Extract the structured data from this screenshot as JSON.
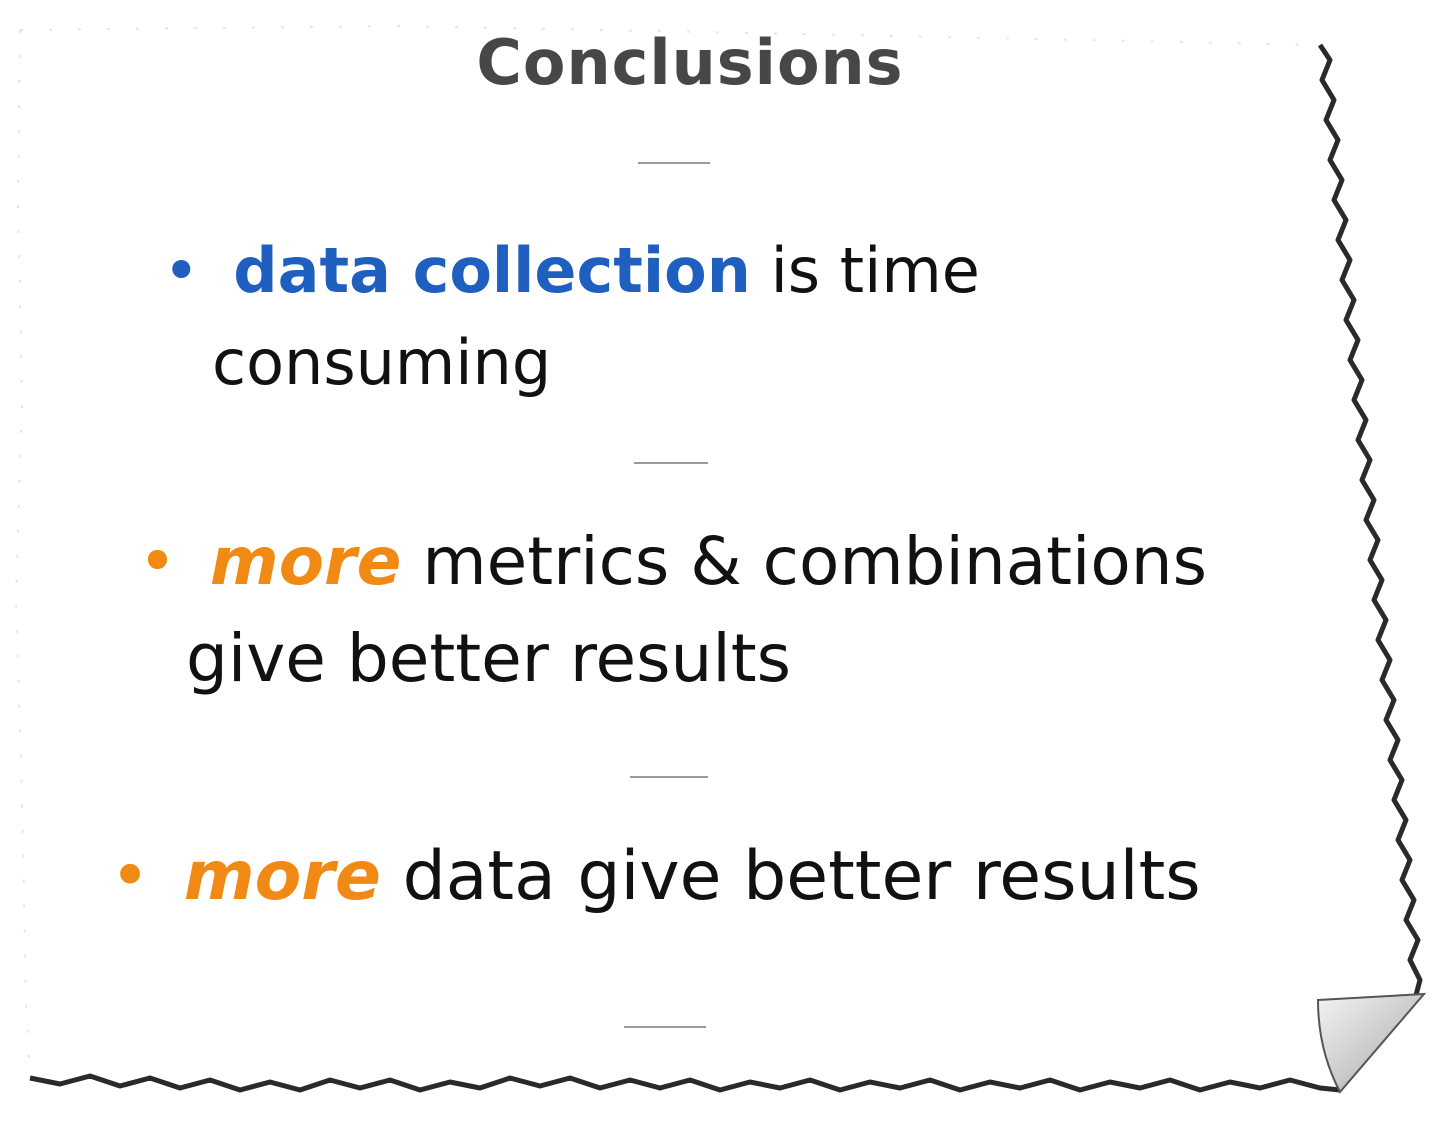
{
  "title": "Conclusions",
  "colors": {
    "accent_blue": "#1f5fbf",
    "accent_orange": "#f08a14",
    "title_gray": "#474747",
    "divider_gray": "#9b9b9b"
  },
  "bullets": [
    {
      "bullet_symbol": "•",
      "highlight": "data collection",
      "rest_line1": " is time",
      "line2": "consuming"
    },
    {
      "bullet_symbol": "•",
      "highlight": "more",
      "rest_line1": " metrics & combinations",
      "line2": "give better results"
    },
    {
      "bullet_symbol": "•",
      "highlight": "more",
      "rest_line1": " data give better results"
    }
  ]
}
